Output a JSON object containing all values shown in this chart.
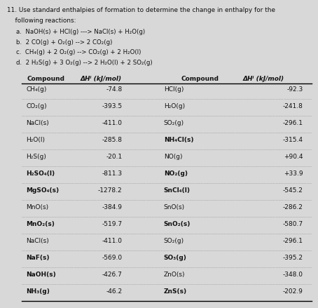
{
  "title_line1": "11. Use standard enthalpies of formation to determine the change in enthalpy for the",
  "title_line2": "    following reactions:",
  "reaction_a": "a.  NaOH(s) + HCl(g) ---> NaCl(s) + H₂O(g)",
  "reaction_b": "b.  2 CO(g) + O₂(g) --> 2 CO₂(g)",
  "reaction_c": "c.  CH₄(g) + 2 O₂(g) --> CO₂(g) + 2 H₂O(l)",
  "reaction_d": "d.  2 H₂S(g) + 3 O₂(g) --> 2 H₂O(l) + 2 SO₂(g)",
  "header1": "Compound",
  "header2": "ΔHⁱ (kJ/mol)",
  "header3": "Compound",
  "header4": "ΔHⁱ (kJ/mol)",
  "left_compounds": [
    "CH₄(g)",
    "CO₂(g)",
    "NaCl(s)",
    "H₂O(l)",
    "H₂S(g)",
    "H₂SO₄(l)",
    "MgSO₄(s)",
    "MnO(s)",
    "MnO₂(s)",
    "NaCl(s)",
    "NaF(s)",
    "NaOH(s)",
    "NH₃(g)"
  ],
  "left_values": [
    "-74.8",
    "-393.5",
    "-411.0",
    "-285.8",
    "-20.1",
    "-811.3",
    "-1278.2",
    "-384.9",
    "-519.7",
    "-411.0",
    "-569.0",
    "-426.7",
    "-46.2"
  ],
  "right_compounds": [
    "HCl(g)",
    "H₂O(g)",
    "SO₂(g)",
    "NH₄Cl(s)",
    "NO(g)",
    "NO₂(g)",
    "SnCl₄(l)",
    "SnO(s)",
    "SnO₂(s)",
    "SO₂(g)",
    "SO₃(g)",
    "ZnO(s)",
    "ZnS(s)"
  ],
  "right_values": [
    "-92.3",
    "-241.8",
    "-296.1",
    "-315.4",
    "+90.4",
    "+33.9",
    "-545.2",
    "-286.2",
    "-580.7",
    "-296.1",
    "-395.2",
    "-348.0",
    "-202.9"
  ],
  "bg_color": "#d8d8d8",
  "text_color": "#111111",
  "line_color": "#000000",
  "sep_color": "#888888"
}
